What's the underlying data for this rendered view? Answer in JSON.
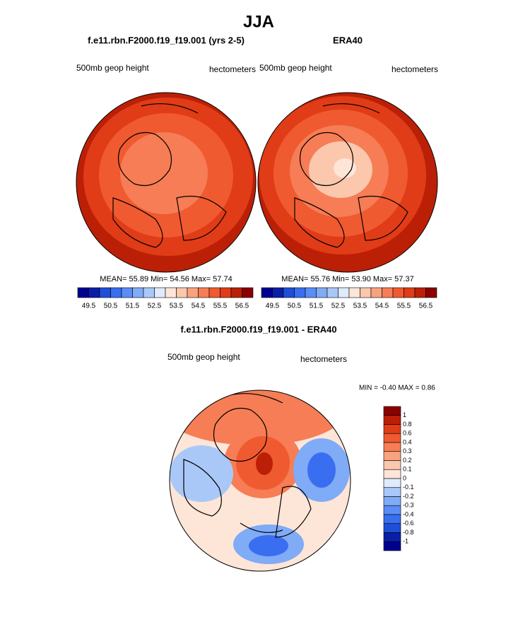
{
  "header": {
    "title": "JJA"
  },
  "panels": [
    {
      "title": "f.e11.rbn.F2000.f19_f19.001 (yrs 2-5)",
      "left_label": "500mb geop height",
      "right_label": "hectometers",
      "stats": "MEAN=  55.89  Min=  54.56  Max=  57.74"
    },
    {
      "title": "ERA40",
      "left_label": "500mb geop height",
      "right_label": "hectometers",
      "stats": "MEAN=  55.76  Min=  53.90  Max=  57.37"
    }
  ],
  "colorbar": {
    "colors": [
      "#00008f",
      "#0a1fa8",
      "#1f4fd8",
      "#3a6ef0",
      "#5a8df5",
      "#7fabf7",
      "#a9c8f8",
      "#dfeafb",
      "#fde5d8",
      "#fbc7ad",
      "#f9a27e",
      "#f67d55",
      "#f05a30",
      "#e03c17",
      "#bb2007",
      "#8b0000"
    ],
    "labels": [
      "49.5",
      "50.5",
      "51.5",
      "52.5",
      "53.5",
      "54.5",
      "55.5",
      "56.5"
    ]
  },
  "difference": {
    "title": "f.e11.rbn.F2000.f19_f19.001 - ERA40",
    "left_label": "500mb geop height",
    "right_label": "hectometers",
    "stats": "MIN =  -0.40 MAX =   0.86",
    "colorbar": {
      "colors": [
        "#8b0000",
        "#bb2007",
        "#e03c17",
        "#f05a30",
        "#f67d55",
        "#f9a27e",
        "#fbc7ad",
        "#fde5d8",
        "#dfeafb",
        "#a9c8f8",
        "#7fabf7",
        "#5a8df5",
        "#3a6ef0",
        "#1f4fd8",
        "#0a1fa8",
        "#00008f"
      ],
      "labels": [
        "1",
        "0.8",
        "0.6",
        "0.4",
        "0.3",
        "0.2",
        "0.1",
        "0",
        "-0.1",
        "-0.2",
        "-0.3",
        "-0.4",
        "-0.6",
        "-0.8",
        "-1"
      ]
    }
  }
}
